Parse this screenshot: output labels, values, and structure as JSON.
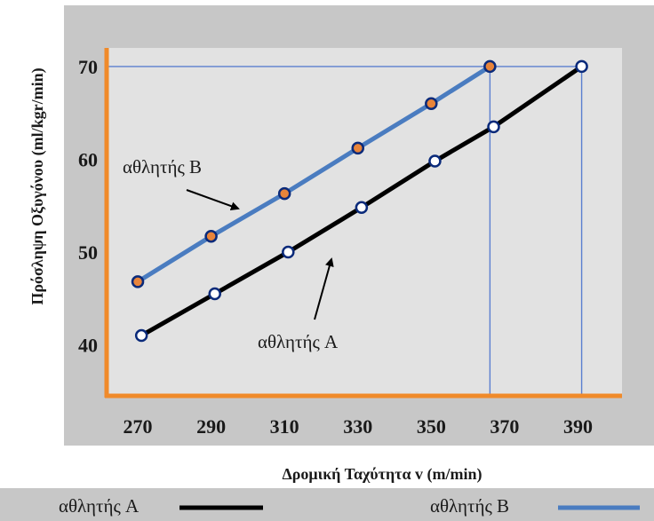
{
  "chart_data": {
    "type": "line",
    "xlabel": "Δρομική Ταχύτητα v (m/min)",
    "ylabel": "Πρόσληψη Οξυγόνου (ml/kgr/min)",
    "x_ticks": [
      270,
      290,
      310,
      330,
      350,
      370,
      390
    ],
    "y_ticks": [
      40,
      50,
      60,
      70
    ],
    "xlim": [
      262,
      402
    ],
    "ylim": [
      34.5,
      72
    ],
    "grid": false,
    "series": [
      {
        "name": "αθλητής A",
        "color": "#000000",
        "marker_fill": "#ffffff",
        "marker_stroke": "#0a2a7a",
        "x": [
          271,
          291,
          311,
          331,
          351,
          367,
          391
        ],
        "y": [
          41,
          45.5,
          50,
          54.8,
          59.8,
          63.5,
          70
        ]
      },
      {
        "name": "αθλητής B",
        "color": "#4a7cc0",
        "marker_fill": "#e8843a",
        "marker_stroke": "#0a2a7a",
        "x": [
          270,
          290,
          310,
          330,
          350,
          366
        ],
        "y": [
          46.8,
          51.7,
          56.3,
          61.2,
          66,
          70
        ]
      }
    ],
    "reference_lines": [
      {
        "x": 366,
        "y": 70
      },
      {
        "x": 391,
        "y": 70
      }
    ],
    "annotations": [
      {
        "text": "αθλητής B",
        "series": "αθλητής B"
      },
      {
        "text": "αθλητής A",
        "series": "αθλητής A"
      }
    ],
    "legend": {
      "position": "bottom",
      "items": [
        {
          "label": "αθλητής A",
          "color": "#000000"
        },
        {
          "label": "αθλητής B",
          "color": "#4a7cc0"
        }
      ]
    },
    "colors": {
      "page_background": "#c7c7c7",
      "plot_background": "#e2e2e2",
      "axis_lines": "#f08a2a",
      "reference_lines": "#5b7fd0"
    }
  }
}
